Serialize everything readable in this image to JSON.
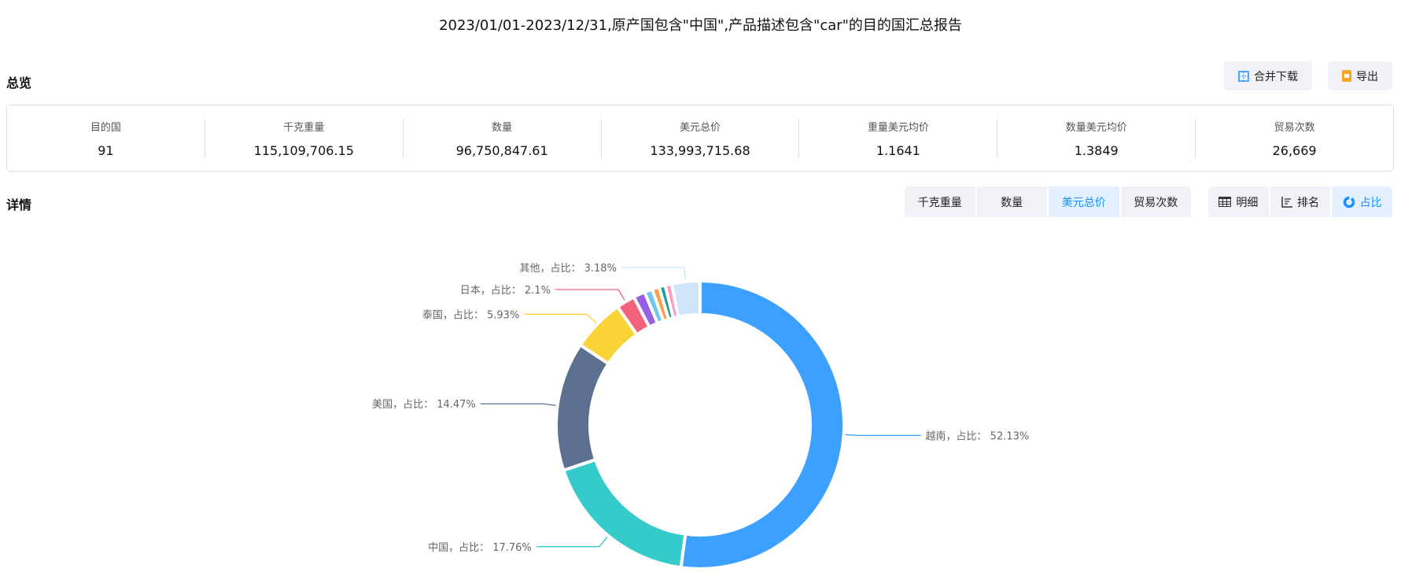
{
  "title": "2023/01/01-2023/12/31,原产国包含\"中国\",产品描述包含\"car\"的目的国汇总报告",
  "overview": {
    "heading": "总览",
    "merge_download": "合并下载",
    "export": "导出",
    "stats": [
      {
        "label": "目的国",
        "value": "91"
      },
      {
        "label": "千克重量",
        "value": "115,109,706.15"
      },
      {
        "label": "数量",
        "value": "96,750,847.61"
      },
      {
        "label": "美元总价",
        "value": "133,993,715.68"
      },
      {
        "label": "重量美元均价",
        "value": "1.1641"
      },
      {
        "label": "数量美元均价",
        "value": "1.3849"
      },
      {
        "label": "贸易次数",
        "value": "26,669"
      }
    ]
  },
  "details": {
    "heading": "详情",
    "metric_tabs": [
      {
        "label": "千克重量",
        "active": false
      },
      {
        "label": "数量",
        "active": false
      },
      {
        "label": "美元总价",
        "active": true
      },
      {
        "label": "贸易次数",
        "active": false
      }
    ],
    "view_tabs": [
      {
        "label": "明细",
        "icon": "table-icon",
        "active": false
      },
      {
        "label": "排名",
        "icon": "ranking-icon",
        "active": false
      },
      {
        "label": "占比",
        "icon": "donut-icon",
        "active": true
      }
    ]
  },
  "chart_data": {
    "type": "pie",
    "variant": "donut",
    "label_format": "{name}，占比： {value}%",
    "slices": [
      {
        "name": "越南",
        "value": 52.13,
        "color": "#3ba0ff",
        "labeled": true
      },
      {
        "name": "中国",
        "value": 17.76,
        "color": "#36cbcb",
        "labeled": true
      },
      {
        "name": "美国",
        "value": 14.47,
        "color": "#5d7092",
        "labeled": true
      },
      {
        "name": "泰国",
        "value": 5.93,
        "color": "#fad337",
        "labeled": true
      },
      {
        "name": "日本",
        "value": 2.1,
        "color": "#f2637b",
        "labeled": true
      },
      {
        "name": "",
        "value": 1.3,
        "color": "#975fe4",
        "labeled": false
      },
      {
        "name": "",
        "value": 0.9,
        "color": "#6dc8ec",
        "labeled": false
      },
      {
        "name": "",
        "value": 0.8,
        "color": "#ff9d4d",
        "labeled": false
      },
      {
        "name": "",
        "value": 0.7,
        "color": "#269a99",
        "labeled": false
      },
      {
        "name": "",
        "value": 0.73,
        "color": "#ff99c3",
        "labeled": false
      },
      {
        "name": "其他",
        "value": 3.18,
        "color": "#cfe5fc",
        "labeled": true
      }
    ]
  }
}
